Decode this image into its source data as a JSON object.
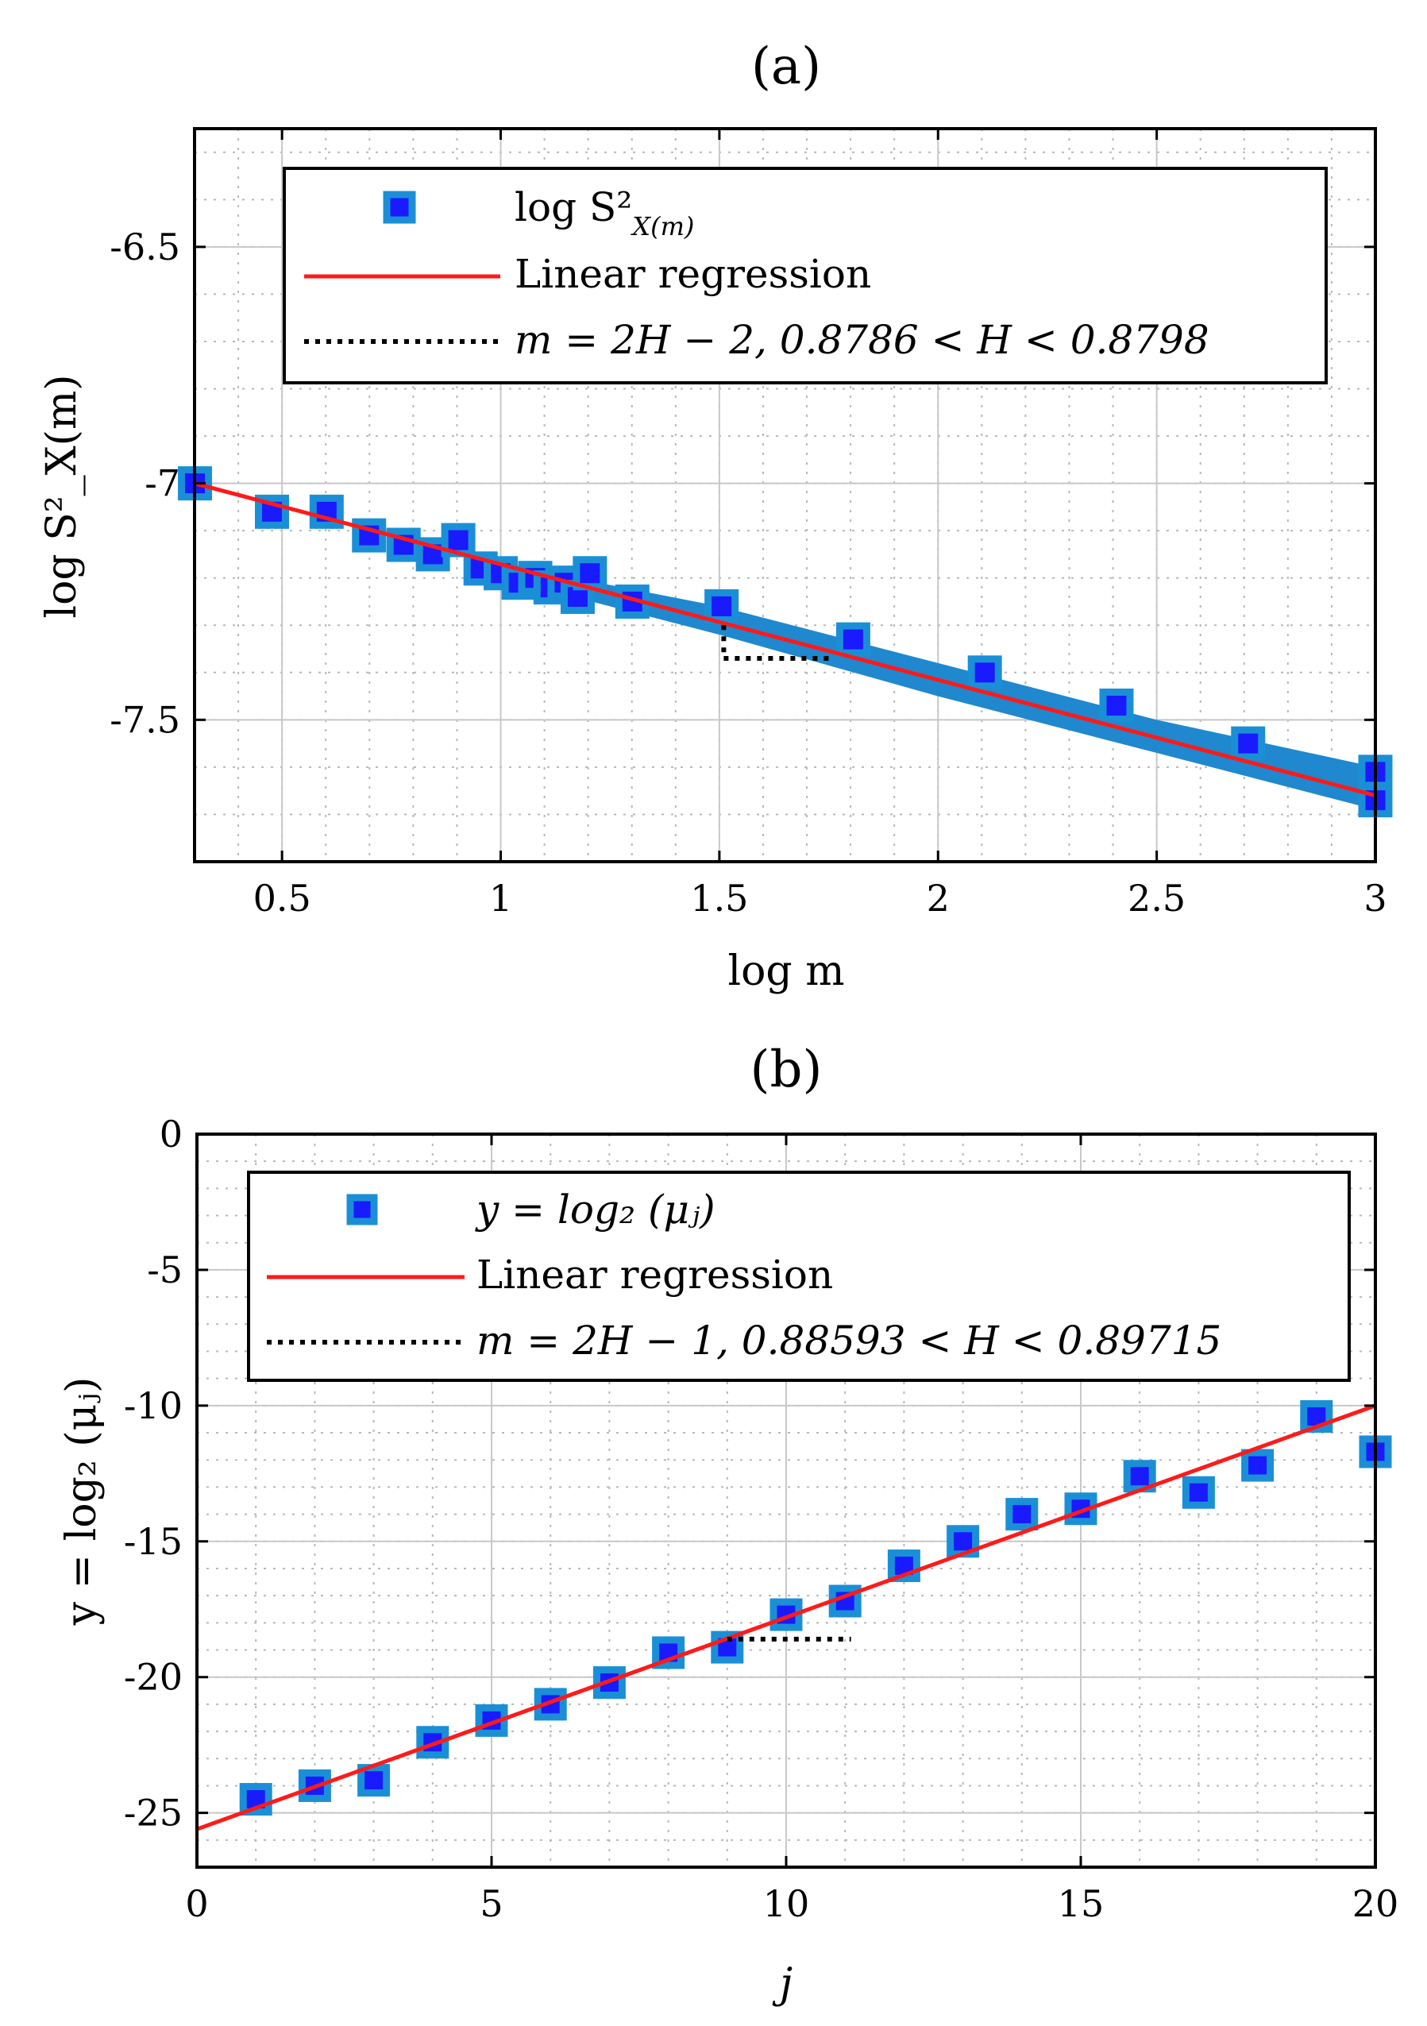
{
  "chart_data": [
    {
      "type": "scatter",
      "title": "(a)",
      "xlabel": "log m",
      "ylabel": "log S²_X(m)",
      "xlim": [
        0.3,
        3.0
      ],
      "ylim": [
        -7.8,
        -6.25
      ],
      "xticks": [
        0.5,
        1,
        1.5,
        2,
        2.5,
        3
      ],
      "xtick_labels": [
        "0.5",
        "1",
        "1.5",
        "2",
        "2.5",
        "3"
      ],
      "yticks": [
        -6.5,
        -7,
        -7.5
      ],
      "ytick_labels": [
        "-6.5",
        "-7",
        "-7.5"
      ],
      "grid": true,
      "legend_placement": "top-center",
      "legend": {
        "series_label": "log S²",
        "series_label_sub": "X(m)",
        "regression_label": "Linear regression",
        "bounds_label": "m = 2H − 2, 0.8786 < H < 0.8798"
      },
      "series": [
        {
          "name": "log S²_X(m)",
          "x": [
            0.301,
            0.477,
            0.602,
            0.699,
            0.778,
            0.845,
            0.903,
            0.954,
            1.0,
            1.041,
            1.079,
            1.114,
            1.146,
            1.176,
            1.204,
            1.301,
            1.505,
            1.806,
            2.107,
            2.408,
            2.709,
            3.0,
            3.0
          ],
          "y": [
            -7.0,
            -7.06,
            -7.06,
            -7.11,
            -7.13,
            -7.15,
            -7.12,
            -7.18,
            -7.19,
            -7.21,
            -7.2,
            -7.22,
            -7.21,
            -7.24,
            -7.19,
            -7.25,
            -7.26,
            -7.33,
            -7.4,
            -7.47,
            -7.55,
            -7.61,
            -7.67
          ]
        }
      ],
      "scatter_band": {
        "x": [
          1.0,
          1.5,
          2.0,
          2.5,
          3.0
        ],
        "y_upper": [
          -7.17,
          -7.26,
          -7.38,
          -7.5,
          -7.6
        ],
        "y_lower": [
          -7.2,
          -7.32,
          -7.45,
          -7.57,
          -7.69
        ]
      },
      "regression": {
        "x": [
          0.3,
          3.0
        ],
        "y": [
          -7.0,
          -7.66
        ]
      },
      "bounds_line": {
        "x": [
          1.51,
          1.76
        ],
        "y": [
          -7.37,
          -7.37
        ],
        "tick_x": 1.51,
        "tick_y": [
          -7.3,
          -7.37
        ]
      }
    },
    {
      "type": "scatter",
      "title": "(b)",
      "xlabel": "j",
      "ylabel": "y = log₂ (μⱼ)",
      "xlim": [
        0,
        20
      ],
      "ylim": [
        -27,
        0
      ],
      "xticks": [
        0,
        5,
        10,
        15,
        20
      ],
      "xtick_labels": [
        "0",
        "5",
        "10",
        "15",
        "20"
      ],
      "yticks": [
        0,
        -5,
        -10,
        -15,
        -20,
        -25
      ],
      "ytick_labels": [
        "0",
        "-5",
        "-10",
        "-15",
        "-20",
        "-25"
      ],
      "grid": true,
      "legend_placement": "top-center",
      "legend": {
        "series_label": "y = log₂ (μⱼ)",
        "regression_label": "Linear regression",
        "bounds_label": "m = 2H − 1, 0.88593 < H < 0.89715"
      },
      "series": [
        {
          "name": "y = log2(mu_j)",
          "x": [
            1,
            2,
            3,
            4,
            5,
            6,
            7,
            8,
            9,
            10,
            11,
            12,
            13,
            14,
            15,
            16,
            17,
            18,
            19,
            20
          ],
          "y": [
            -24.5,
            -24.0,
            -23.8,
            -22.4,
            -21.6,
            -21.0,
            -20.2,
            -19.1,
            -18.9,
            -17.7,
            -17.2,
            -15.9,
            -15.0,
            -14.0,
            -13.8,
            -12.6,
            -13.2,
            -12.2,
            -10.4,
            -11.7
          ]
        }
      ],
      "regression": {
        "x": [
          0,
          20
        ],
        "y": [
          -25.6,
          -10.0
        ]
      },
      "bounds_line": {
        "x": [
          9.0,
          11.1
        ],
        "y": [
          -18.6,
          -18.6
        ]
      }
    }
  ]
}
